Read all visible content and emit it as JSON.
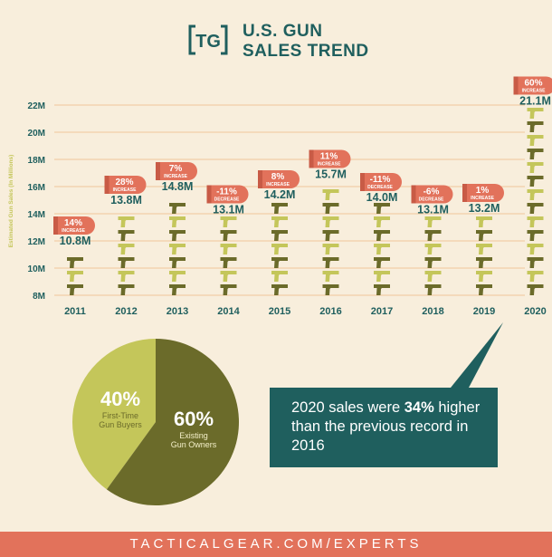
{
  "header": {
    "logo_text": "TG",
    "title_line1": "U.S. GUN",
    "title_line2": "SALES TREND"
  },
  "colors": {
    "background": "#f8eedc",
    "teal": "#1f5f5e",
    "olive": "#6b6b2a",
    "light_green": "#c4c65a",
    "coral": "#e2725b",
    "gridline": "#efc79a"
  },
  "chart_data": [
    {
      "type": "bar",
      "ylabel": "Estimated Gun Sales (In Millions)",
      "ylim": [
        8,
        22
      ],
      "yticks": [
        "8M",
        "10M",
        "12M",
        "14M",
        "16M",
        "18M",
        "20M",
        "22M"
      ],
      "grid": true,
      "categories": [
        "2011",
        "2012",
        "2013",
        "2014",
        "2015",
        "2016",
        "2017",
        "2018",
        "2019",
        "2020"
      ],
      "values": [
        10.8,
        13.8,
        14.8,
        13.1,
        14.2,
        15.7,
        14.0,
        13.1,
        13.2,
        21.1
      ],
      "value_labels": [
        "10.8M",
        "13.8M",
        "14.8M",
        "13.1M",
        "14.2M",
        "15.7M",
        "14.0M",
        "13.1M",
        "13.2M",
        "21.1M"
      ],
      "change_labels": [
        {
          "pct": "14%",
          "word": "INCREASE"
        },
        {
          "pct": "28%",
          "word": "INCREASE"
        },
        {
          "pct": "7%",
          "word": "INCREASE"
        },
        {
          "pct": "-11%",
          "word": "DECREASE"
        },
        {
          "pct": "8%",
          "word": "INCREASE"
        },
        {
          "pct": "11%",
          "word": "INCREASE"
        },
        {
          "pct": "-11%",
          "word": "DECREASE"
        },
        {
          "pct": "-6%",
          "word": "DECREASE"
        },
        {
          "pct": "1%",
          "word": "INCREASE"
        },
        {
          "pct": "60%",
          "word": "INCREASE"
        }
      ]
    },
    {
      "type": "pie",
      "slices": [
        {
          "pct_label": "40%",
          "value": 40,
          "name_line1": "First-Time",
          "name_line2": "Gun Buyers",
          "color": "#c4c65a"
        },
        {
          "pct_label": "60%",
          "value": 60,
          "name_line1": "Existing",
          "name_line2": "Gun Owners",
          "color": "#6b6b2a"
        }
      ]
    }
  ],
  "callout": {
    "text_before": "2020 sales were ",
    "highlight": "34%",
    "text_after": " higher than the previous record in 2016"
  },
  "footer": {
    "text": "TACTICALGEAR.COM/EXPERTS"
  }
}
